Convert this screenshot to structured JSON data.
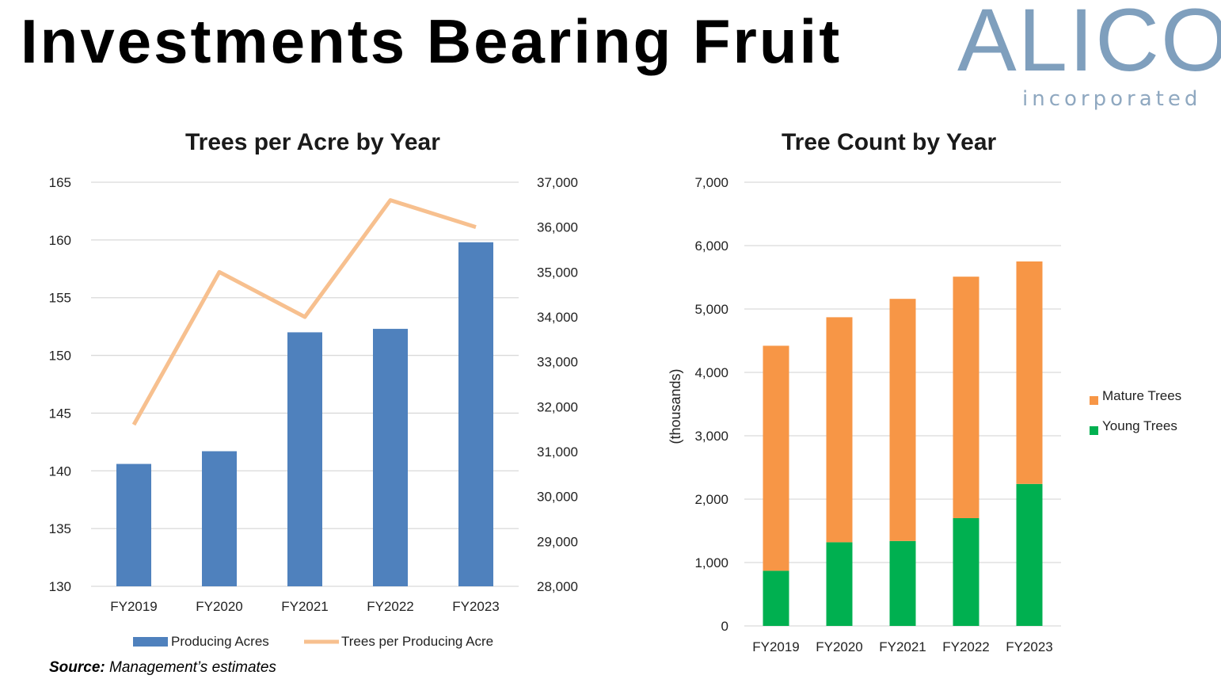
{
  "page": {
    "title": "Investments Bearing Fruit",
    "logo": {
      "word": "ALICO",
      "sub": "incorporated"
    },
    "source_label": "Source:",
    "source_text": "Management’s estimates",
    "colors": {
      "bar_blue": "#4f81bd",
      "line_orange": "#f7c08f",
      "mature_orange": "#f79646",
      "young_green": "#00b050",
      "logo_blue": "#7f9fbd"
    }
  },
  "chart_data": [
    {
      "type": "bar",
      "title": "Trees per Acre by Year",
      "categories": [
        "FY2019",
        "FY2020",
        "FY2021",
        "FY2022",
        "FY2023"
      ],
      "series": [
        {
          "name": "Producing Acres",
          "type": "bar",
          "axis": "left",
          "values": [
            140.6,
            141.7,
            152.0,
            152.3,
            159.8
          ]
        },
        {
          "name": "Trees per Producing Acre",
          "type": "line",
          "axis": "right",
          "values": [
            31600,
            35000,
            34000,
            36600,
            36000
          ]
        }
      ],
      "y_left": {
        "lim": [
          130,
          165
        ],
        "ticks": [
          "130",
          "135",
          "140",
          "145",
          "150",
          "155",
          "160",
          "165"
        ]
      },
      "y_right": {
        "lim": [
          28000,
          37000
        ],
        "ticks": [
          "28,000",
          "29,000",
          "30,000",
          "31,000",
          "32,000",
          "33,000",
          "34,000",
          "35,000",
          "36,000",
          "37,000"
        ]
      },
      "grid": true,
      "legend": "bottom"
    },
    {
      "type": "bar",
      "stacked": true,
      "title": "Tree Count by Year",
      "ylabel": "(thousands)",
      "categories": [
        "FY2019",
        "FY2020",
        "FY2021",
        "FY2022",
        "FY2023"
      ],
      "series": [
        {
          "name": "Young Trees",
          "values": [
            870,
            1320,
            1340,
            1700,
            2240
          ]
        },
        {
          "name": "Mature Trees",
          "values": [
            3550,
            3550,
            3820,
            3810,
            3510
          ]
        }
      ],
      "ylim": [
        0,
        7000
      ],
      "yticks": [
        "0",
        "1,000",
        "2,000",
        "3,000",
        "4,000",
        "5,000",
        "6,000",
        "7,000"
      ],
      "grid": true,
      "legend": "right"
    }
  ]
}
